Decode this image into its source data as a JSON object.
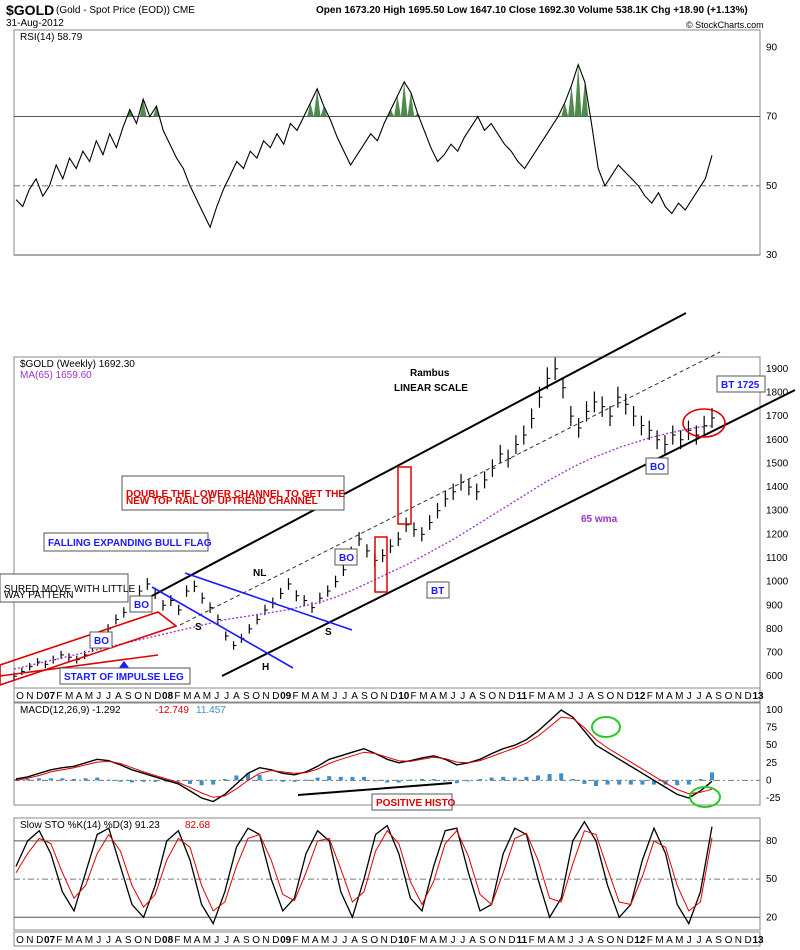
{
  "header": {
    "symbol": "$GOLD",
    "description": "(Gold - Spot Price (EOD)) CME",
    "date": "31-Aug-2012",
    "ohlc": "Open 1673.20  High 1695.50  Low 1647.10  Close 1692.30  Volume 538.1K  Chg +18.90 (+1.13%)",
    "watermark": "© StockCharts.com"
  },
  "colors": {
    "price_bar": "#000000",
    "ma": "#9933cc",
    "channel": "#000000",
    "flag": "#1a1aff",
    "red_annotation": "#dd0000",
    "macd_line": "#000000",
    "macd_signal": "#dd0000",
    "histogram": "#3d8fc8",
    "sto_k": "#000000",
    "sto_d": "#dd0000",
    "rsi_fill": "#4f8a4f",
    "green_circle": "#22cc22"
  },
  "chart_data": [
    {
      "type": "line",
      "panel": "rsi",
      "legend": "RSI(14) 58.79",
      "ylim": [
        30,
        95
      ],
      "yticks": [
        90,
        70,
        50,
        30
      ],
      "series": [
        {
          "name": "RSI(14)",
          "values": [
            46,
            44,
            49,
            52,
            47,
            50,
            56,
            52,
            58,
            55,
            60,
            57,
            63,
            59,
            65,
            61,
            67,
            72,
            68,
            75,
            70,
            73,
            66,
            62,
            58,
            55,
            50,
            46,
            42,
            38,
            44,
            49,
            53,
            57,
            55,
            60,
            58,
            63,
            61,
            65,
            62,
            68,
            66,
            70,
            74,
            78,
            73,
            69,
            64,
            60,
            56,
            59,
            62,
            65,
            63,
            68,
            72,
            76,
            80,
            77,
            71,
            66,
            61,
            57,
            59,
            62,
            60,
            64,
            67,
            70,
            66,
            68,
            65,
            62,
            60,
            57,
            55,
            58,
            61,
            64,
            67,
            70,
            74,
            79,
            85,
            80,
            68,
            55,
            50,
            53,
            56,
            54,
            52,
            50,
            47,
            45,
            48,
            44,
            42,
            45,
            43,
            46,
            49,
            52,
            58.79
          ]
        }
      ]
    },
    {
      "type": "line",
      "panel": "price",
      "title": "Rambus LINEAR SCALE",
      "legend": [
        "$GOLD (Weekly) 1692.30",
        "MA(65) 1659.60"
      ],
      "ylim": [
        550,
        1950
      ],
      "yticks": [
        600,
        700,
        800,
        900,
        1000,
        1100,
        1200,
        1300,
        1400,
        1500,
        1600,
        1700,
        1800,
        1900
      ],
      "series": [
        {
          "name": "$GOLD (Weekly)",
          "values": [
            600,
            620,
            640,
            660,
            650,
            670,
            690,
            680,
            670,
            690,
            720,
            760,
            800,
            840,
            870,
            900,
            960,
            990,
            950,
            900,
            920,
            880,
            960,
            980,
            930,
            890,
            840,
            770,
            730,
            760,
            800,
            840,
            880,
            910,
            950,
            990,
            940,
            920,
            890,
            930,
            960,
            1000,
            1050,
            1120,
            1180,
            1130,
            1090,
            1110,
            1150,
            1180,
            1240,
            1220,
            1200,
            1250,
            1300,
            1350,
            1380,
            1420,
            1400,
            1380,
            1430,
            1480,
            1540,
            1520,
            1580,
            1620,
            1690,
            1780,
            1860,
            1900,
            1820,
            1700,
            1650,
            1720,
            1760,
            1740,
            1700,
            1780,
            1750,
            1700,
            1660,
            1640,
            1600,
            1580,
            1620,
            1600,
            1640,
            1620,
            1660,
            1692.3
          ]
        },
        {
          "name": "MA(65)",
          "values": [
            630,
            645,
            660,
            675,
            690,
            705,
            720,
            735,
            750,
            765,
            780,
            795,
            810,
            825,
            840,
            850,
            860,
            870,
            880,
            895,
            910,
            930,
            955,
            985,
            1015,
            1045,
            1075,
            1110,
            1145,
            1180,
            1220,
            1260,
            1300,
            1340,
            1380,
            1420,
            1455,
            1490,
            1520,
            1545,
            1570,
            1590,
            1610,
            1625,
            1640,
            1652,
            1659.6
          ]
        }
      ],
      "x_tick_labels": [
        "O",
        "N",
        "D",
        "07",
        "F",
        "M",
        "A",
        "M",
        "J",
        "J",
        "A",
        "S",
        "O",
        "N",
        "D",
        "08",
        "F",
        "M",
        "A",
        "M",
        "J",
        "J",
        "A",
        "S",
        "O",
        "N",
        "D",
        "09",
        "F",
        "M",
        "A",
        "M",
        "J",
        "J",
        "A",
        "S",
        "O",
        "N",
        "D",
        "10",
        "F",
        "M",
        "A",
        "M",
        "J",
        "J",
        "A",
        "S",
        "O",
        "N",
        "D",
        "11",
        "F",
        "M",
        "A",
        "M",
        "J",
        "J",
        "A",
        "S",
        "O",
        "N",
        "D",
        "12",
        "F",
        "M",
        "A",
        "M",
        "J",
        "J",
        "A",
        "S",
        "O",
        "N",
        "D",
        "13"
      ],
      "annotations": {
        "measured_move": "SURED MOVE WITH LITTLE",
        "measured_move_2": "WAY PATTERN",
        "bull_flag": "FALLING EXPANDING BULL FLAG",
        "double_channel_1": "DOUBLE THE LOWER CHANNEL TO GET THE",
        "double_channel_2": "NEW TOP RAIL OF UPTREND CHANNEL",
        "impulse": "START OF IMPULSE LEG",
        "bo1": "BO",
        "bo2": "BO",
        "bo3": "BO",
        "bo4": "BO",
        "bt1": "BT",
        "bt1725": "BT 1725",
        "wma": "65 wma",
        "s1": "S",
        "s2": "S",
        "h": "H",
        "nl": "NL"
      }
    },
    {
      "type": "line",
      "panel": "macd",
      "legend": [
        "MACD(12,26,9) -1.292",
        "-12.749",
        "11.457"
      ],
      "ylim": [
        -35,
        110
      ],
      "yticks": [
        100,
        75,
        50,
        25,
        0,
        -25
      ],
      "series": [
        {
          "name": "MACD",
          "values": [
            2,
            5,
            10,
            15,
            18,
            20,
            25,
            30,
            28,
            22,
            15,
            10,
            5,
            0,
            -5,
            -15,
            -25,
            -30,
            -20,
            -5,
            10,
            18,
            15,
            10,
            8,
            12,
            20,
            30,
            35,
            40,
            45,
            38,
            30,
            25,
            28,
            32,
            35,
            30,
            22,
            25,
            30,
            38,
            45,
            50,
            58,
            70,
            85,
            100,
            90,
            70,
            50,
            40,
            30,
            20,
            10,
            0,
            -10,
            -20,
            -25,
            -15,
            -1.292
          ]
        },
        {
          "name": "Signal",
          "values": [
            0,
            3,
            7,
            12,
            15,
            18,
            22,
            26,
            27,
            24,
            18,
            12,
            7,
            2,
            -3,
            -10,
            -18,
            -24,
            -22,
            -12,
            0,
            10,
            14,
            12,
            10,
            11,
            16,
            24,
            30,
            35,
            40,
            38,
            33,
            28,
            27,
            30,
            33,
            31,
            26,
            25,
            28,
            34,
            40,
            46,
            53,
            63,
            76,
            90,
            88,
            75,
            58,
            46,
            36,
            26,
            16,
            6,
            -4,
            -13,
            -19,
            -17,
            -12.749
          ]
        },
        {
          "name": "Histogram",
          "values": [
            2,
            2,
            3,
            3,
            3,
            2,
            3,
            4,
            1,
            -2,
            -3,
            -2,
            -2,
            -2,
            -2,
            -5,
            -7,
            -6,
            2,
            7,
            10,
            8,
            1,
            -2,
            -2,
            1,
            4,
            6,
            5,
            5,
            5,
            0,
            -3,
            -3,
            1,
            2,
            2,
            -1,
            -4,
            0,
            2,
            4,
            5,
            4,
            5,
            7,
            9,
            10,
            2,
            -5,
            -8,
            -6,
            -6,
            -6,
            -6,
            -6,
            -6,
            -7,
            -6,
            2,
            11.457
          ]
        }
      ],
      "annotations": {
        "positive_histo": "POSITIVE HISTO"
      }
    },
    {
      "type": "line",
      "panel": "stochastic",
      "legend": [
        "Slow STO %K(14) %D(3) 91.23",
        "82.68"
      ],
      "ylim": [
        10,
        98
      ],
      "yticks": [
        80,
        50,
        20
      ],
      "series": [
        {
          "name": "%K",
          "values": [
            60,
            80,
            88,
            70,
            40,
            25,
            55,
            85,
            90,
            60,
            30,
            20,
            45,
            80,
            88,
            65,
            30,
            15,
            40,
            75,
            90,
            85,
            50,
            25,
            35,
            70,
            88,
            80,
            40,
            20,
            50,
            85,
            92,
            70,
            35,
            25,
            60,
            88,
            90,
            55,
            25,
            30,
            70,
            90,
            85,
            50,
            20,
            35,
            80,
            95,
            80,
            45,
            20,
            30,
            65,
            90,
            70,
            30,
            15,
            40,
            91.23
          ]
        },
        {
          "name": "%D",
          "values": [
            55,
            70,
            82,
            78,
            55,
            35,
            45,
            70,
            85,
            72,
            45,
            28,
            38,
            65,
            82,
            75,
            45,
            25,
            32,
            60,
            82,
            85,
            65,
            38,
            33,
            55,
            80,
            82,
            58,
            32,
            40,
            72,
            88,
            78,
            48,
            30,
            48,
            78,
            88,
            68,
            38,
            30,
            55,
            82,
            86,
            65,
            35,
            32,
            62,
            88,
            85,
            58,
            32,
            30,
            52,
            80,
            75,
            45,
            25,
            32,
            82.68
          ]
        }
      ]
    }
  ]
}
